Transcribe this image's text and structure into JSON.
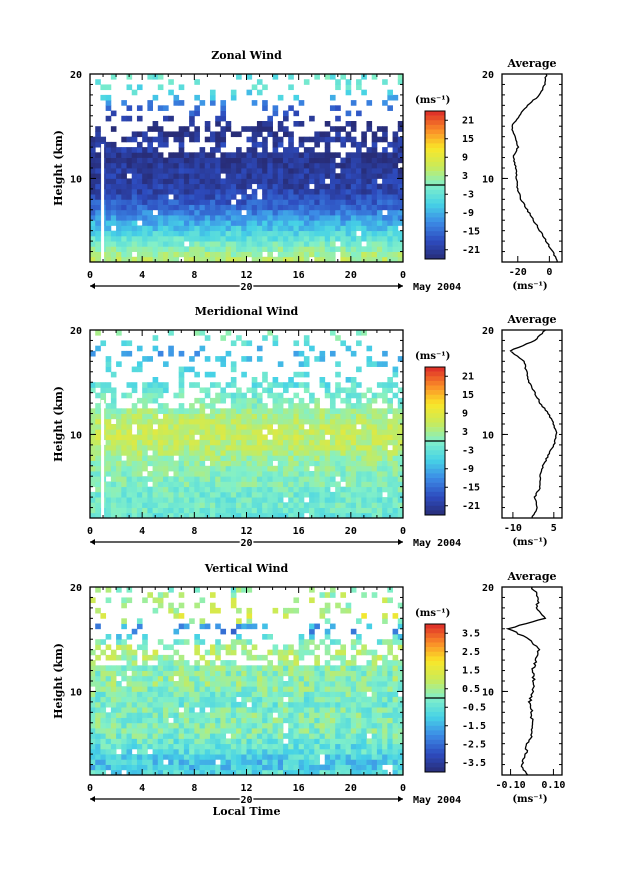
{
  "chart_data": [
    {
      "type": "heatmap",
      "title": "Zonal Wind",
      "ylabel": "Height (km)",
      "ylim": [
        2,
        20
      ],
      "xlim": [
        0,
        24
      ],
      "x_ticks": [
        "0",
        "4",
        "8",
        "12",
        "16",
        "20",
        "0"
      ],
      "y_ticks": [
        "10",
        "20"
      ],
      "date_marker": "20",
      "date_label": "May 2004",
      "colorbar": {
        "unit": "(ms⁻¹)",
        "ticks": [
          "21",
          "15",
          "9",
          "3",
          "-3",
          "-9",
          "-15",
          "-21"
        ],
        "range": [
          -24,
          24
        ]
      },
      "profile": {
        "title": "Average",
        "xlabel": "(ms⁻¹)",
        "x_ticks": [
          "-20",
          "0"
        ],
        "xlim": [
          -30,
          8
        ],
        "y_ticks": [
          "10",
          "20"
        ],
        "heights": [
          2,
          3,
          4,
          5,
          6,
          7,
          8,
          9,
          10,
          11,
          12,
          13,
          14,
          15,
          16,
          17,
          18,
          19,
          20
        ],
        "values": [
          5,
          2,
          -2,
          -6,
          -10,
          -14,
          -18,
          -20,
          -21,
          -21,
          -23,
          -20,
          -22,
          -24,
          -19,
          -14,
          -6,
          -3,
          -2
        ]
      }
    },
    {
      "type": "heatmap",
      "title": "Meridional Wind",
      "ylabel": "Height (km)",
      "ylim": [
        2,
        20
      ],
      "xlim": [
        0,
        24
      ],
      "x_ticks": [
        "0",
        "4",
        "8",
        "12",
        "16",
        "20",
        "0"
      ],
      "y_ticks": [
        "10",
        "20"
      ],
      "date_marker": "20",
      "date_label": "May 2004",
      "colorbar": {
        "unit": "(ms⁻¹)",
        "ticks": [
          "21",
          "15",
          "9",
          "3",
          "-3",
          "-9",
          "-15",
          "-21"
        ],
        "range": [
          -24,
          24
        ]
      },
      "profile": {
        "title": "Average",
        "xlabel": "(ms⁻¹)",
        "x_ticks": [
          "-10",
          "5"
        ],
        "xlim": [
          -14,
          8
        ],
        "y_ticks": [
          "10",
          "20"
        ],
        "heights": [
          2,
          3,
          4,
          5,
          6,
          7,
          8,
          9,
          10,
          11,
          12,
          13,
          14,
          15,
          16,
          17,
          18,
          19,
          20
        ],
        "values": [
          -3,
          -1,
          -2,
          0,
          0,
          1,
          3,
          5,
          6,
          5,
          3,
          0,
          -2,
          -4,
          -5,
          -6,
          -11,
          -2,
          2
        ]
      }
    },
    {
      "type": "heatmap",
      "title": "Vertical Wind",
      "xlabel": "Local Time",
      "ylabel": "Height (km)",
      "ylim": [
        2,
        20
      ],
      "xlim": [
        0,
        24
      ],
      "x_ticks": [
        "0",
        "4",
        "8",
        "12",
        "16",
        "20",
        "0"
      ],
      "y_ticks": [
        "10",
        "20"
      ],
      "date_marker": "20",
      "date_label": "May 2004",
      "colorbar": {
        "unit": "(ms⁻¹)",
        "ticks": [
          "3.5",
          "2.5",
          "1.5",
          "0.5",
          "-0.5",
          "-1.5",
          "-2.5",
          "-3.5"
        ],
        "range": [
          -4,
          4
        ]
      },
      "profile": {
        "title": "Average",
        "xlabel": "(ms⁻¹)",
        "x_ticks": [
          "-0.10",
          "0.10"
        ],
        "xlim": [
          -0.14,
          0.14
        ],
        "y_ticks": [
          "10",
          "20"
        ],
        "heights": [
          2,
          3,
          4,
          5,
          6,
          7,
          8,
          9,
          10,
          11,
          12,
          13,
          14,
          15,
          16,
          17,
          18,
          19,
          20
        ],
        "values": [
          -0.02,
          -0.05,
          -0.03,
          -0.02,
          0.0,
          0.0,
          0.0,
          -0.01,
          0.0,
          0.01,
          0.0,
          0.02,
          0.03,
          -0.01,
          -0.11,
          0.06,
          0.02,
          0.03,
          0.0
        ]
      }
    }
  ]
}
